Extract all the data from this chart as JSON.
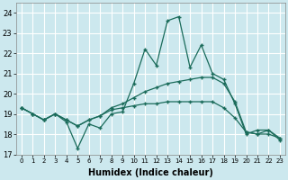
{
  "xlabel": "Humidex (Indice chaleur)",
  "background_color": "#cce8ee",
  "grid_color": "#ffffff",
  "line_color": "#1a6b5a",
  "xlim": [
    -0.5,
    23.5
  ],
  "ylim": [
    17,
    24.5
  ],
  "yticks": [
    17,
    18,
    19,
    20,
    21,
    22,
    23,
    24
  ],
  "xticks": [
    0,
    1,
    2,
    3,
    4,
    5,
    6,
    7,
    8,
    9,
    10,
    11,
    12,
    13,
    14,
    15,
    16,
    17,
    18,
    19,
    20,
    21,
    22,
    23
  ],
  "series": [
    [
      19.3,
      19.0,
      18.7,
      19.0,
      18.6,
      17.3,
      18.5,
      18.3,
      19.0,
      19.1,
      20.5,
      22.2,
      21.4,
      23.6,
      23.8,
      21.3,
      22.4,
      21.0,
      20.7,
      19.5,
      18.0,
      18.2,
      18.2,
      17.7
    ],
    [
      19.3,
      19.0,
      18.7,
      19.0,
      18.7,
      18.4,
      18.7,
      18.9,
      19.3,
      19.5,
      19.8,
      20.1,
      20.3,
      20.5,
      20.6,
      20.7,
      20.8,
      20.8,
      20.5,
      19.6,
      18.1,
      18.0,
      18.2,
      17.8
    ],
    [
      19.3,
      19.0,
      18.7,
      19.0,
      18.7,
      18.4,
      18.7,
      18.9,
      19.2,
      19.3,
      19.4,
      19.5,
      19.5,
      19.6,
      19.6,
      19.6,
      19.6,
      19.6,
      19.3,
      18.8,
      18.1,
      18.0,
      18.0,
      17.8
    ]
  ]
}
